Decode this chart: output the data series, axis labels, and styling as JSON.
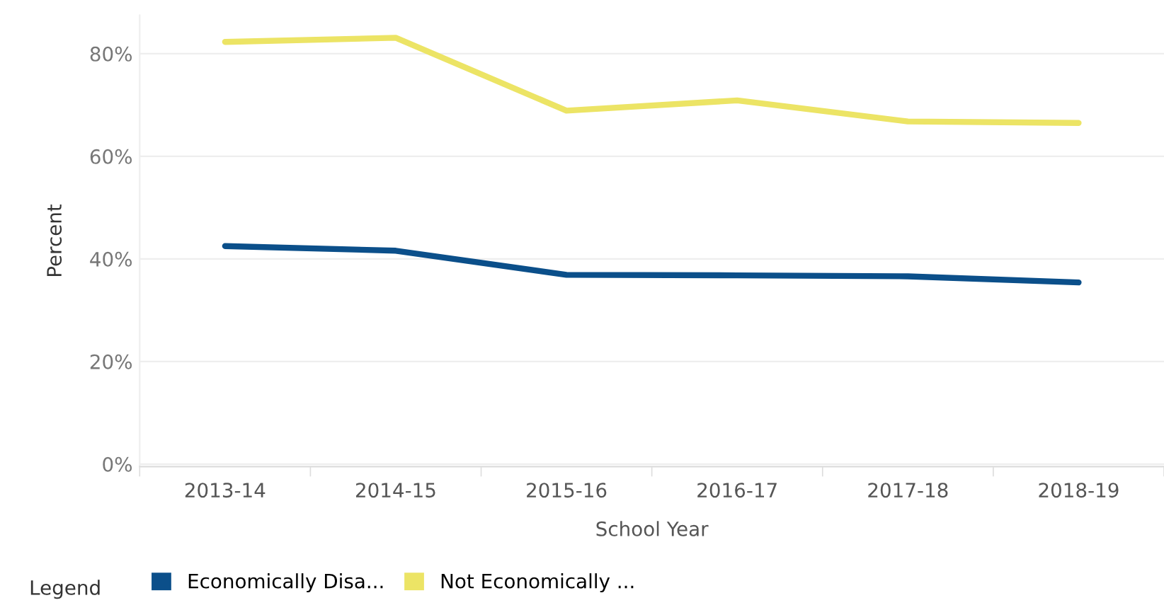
{
  "chart_data": {
    "type": "line",
    "xlabel": "School Year",
    "ylabel": "Percent",
    "legend_title": "Legend",
    "categories": [
      "2013-14",
      "2014-15",
      "2015-16",
      "2016-17",
      "2017-18",
      "2018-19"
    ],
    "series": [
      {
        "name": "Economically Disa...",
        "color": "#0b4f8a",
        "values": [
          42.5,
          41.6,
          36.9,
          36.8,
          36.6,
          35.4
        ]
      },
      {
        "name": "Not Economically ...",
        "color": "#ece465",
        "values": [
          82.3,
          83.1,
          68.9,
          70.9,
          66.8,
          66.5
        ]
      }
    ],
    "ylim": [
      -0.5,
      87.5
    ],
    "yticks": [
      {
        "value": 0,
        "label": "0%"
      },
      {
        "value": 20,
        "label": "20%"
      },
      {
        "value": 40,
        "label": "40%"
      },
      {
        "value": 60,
        "label": "60%"
      },
      {
        "value": 80,
        "label": "80%"
      }
    ],
    "grid": "y",
    "legend": "bottom left",
    "marker": "none",
    "line_style": "solid"
  }
}
